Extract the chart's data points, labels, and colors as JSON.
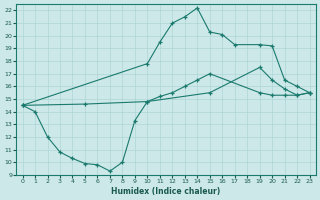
{
  "xlabel": "Humidex (Indice chaleur)",
  "xlim": [
    -0.5,
    23.5
  ],
  "ylim": [
    9,
    22.5
  ],
  "xticks": [
    0,
    1,
    2,
    3,
    4,
    5,
    6,
    7,
    8,
    9,
    10,
    11,
    12,
    13,
    14,
    15,
    16,
    17,
    18,
    19,
    20,
    21,
    22,
    23
  ],
  "yticks": [
    9,
    10,
    11,
    12,
    13,
    14,
    15,
    16,
    17,
    18,
    19,
    20,
    21,
    22
  ],
  "bg_color": "#cce8e8",
  "line_color": "#1a7a6e",
  "grid_color": "#aed4d4",
  "curve_top_x": [
    0,
    10,
    11,
    12,
    13,
    14,
    15,
    16,
    17,
    19,
    20,
    21,
    22,
    23
  ],
  "curve_top_y": [
    14.5,
    17.8,
    19.5,
    21.0,
    21.5,
    22.2,
    20.3,
    20.1,
    19.3,
    19.3,
    19.2,
    16.5,
    16.0,
    15.5
  ],
  "curve_mid_x": [
    0,
    5,
    10,
    15,
    19,
    20,
    21,
    22,
    23
  ],
  "curve_mid_y": [
    14.5,
    14.6,
    14.8,
    15.5,
    17.5,
    16.5,
    15.8,
    15.3,
    15.5
  ],
  "curve_bot_x": [
    0,
    1,
    2,
    3,
    4,
    5,
    6,
    7,
    8,
    9,
    10,
    11,
    12,
    13,
    14,
    15,
    19,
    20,
    21,
    22,
    23
  ],
  "curve_bot_y": [
    14.5,
    14.0,
    12.0,
    10.8,
    10.3,
    9.9,
    9.8,
    9.3,
    10.0,
    13.3,
    14.8,
    15.2,
    15.5,
    16.0,
    16.5,
    17.0,
    15.5,
    15.3,
    15.3,
    15.3,
    15.5
  ]
}
